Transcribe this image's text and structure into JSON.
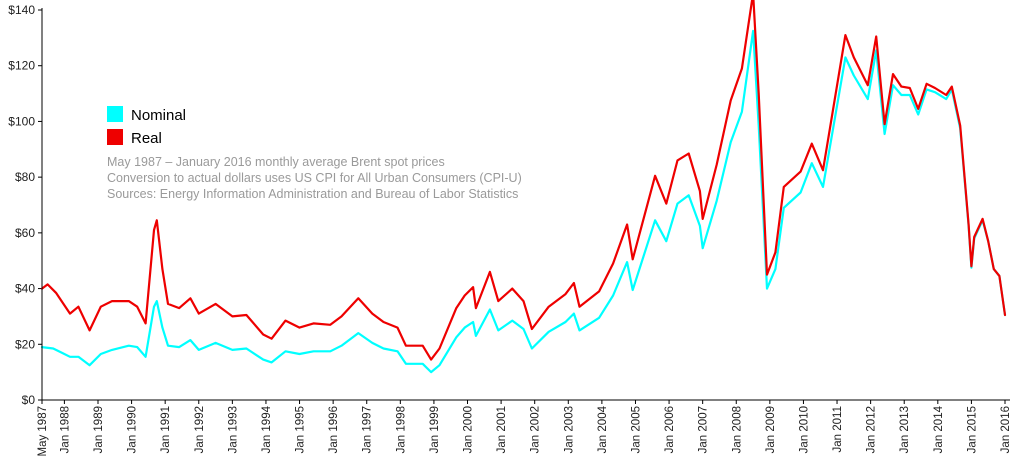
{
  "chart_data": {
    "type": "line",
    "title": "",
    "xlabel": "",
    "ylabel": "",
    "ylim": [
      0,
      140
    ],
    "yticks": [
      "$0",
      "$20",
      "$40",
      "$60",
      "$80",
      "$100",
      "$120",
      "$140"
    ],
    "xticks": [
      "May 1987",
      "Jan 1988",
      "Jan 1989",
      "Jan 1990",
      "Jan 1991",
      "Jan 1992",
      "Jan 1993",
      "Jan 1994",
      "Jan 1995",
      "Jan 1996",
      "Jan 1997",
      "Jan 1998",
      "Jan 1999",
      "Jan 2000",
      "Jan 2001",
      "Jan 2002",
      "Jan 2003",
      "Jan 2004",
      "Jan 2005",
      "Jan 2006",
      "Jan 2007",
      "Jan 2008",
      "Jan 2009",
      "Jan 2010",
      "Jan 2011",
      "Jan 2012",
      "Jan 2013",
      "Jan 2014",
      "Jan 2015",
      "Jan 2016"
    ],
    "grid": false,
    "legend_position": "upper-left",
    "annotations": [
      "May 1987 – January 2016 monthly average Brent spot prices",
      "Conversion to actual dollars uses US CPI for All Urban Consumers (CPI-U)",
      "Sources: Energy Information Administration and Bureau of Labor Statistics"
    ],
    "series": [
      {
        "name": "Nominal",
        "color": "#00ffff",
        "points": [
          [
            "1987-05",
            19.0
          ],
          [
            "1987-09",
            18.5
          ],
          [
            "1987-12",
            17.0
          ],
          [
            "1988-03",
            15.5
          ],
          [
            "1988-06",
            15.5
          ],
          [
            "1988-10",
            12.5
          ],
          [
            "1989-02",
            16.5
          ],
          [
            "1989-06",
            18.0
          ],
          [
            "1989-12",
            19.5
          ],
          [
            "1990-03",
            19.0
          ],
          [
            "1990-06",
            15.5
          ],
          [
            "1990-09",
            33.5
          ],
          [
            "1990-10",
            35.5
          ],
          [
            "1990-12",
            26.0
          ],
          [
            "1991-02",
            19.5
          ],
          [
            "1991-06",
            19.0
          ],
          [
            "1991-10",
            21.5
          ],
          [
            "1992-01",
            18.0
          ],
          [
            "1992-07",
            20.5
          ],
          [
            "1993-01",
            18.0
          ],
          [
            "1993-06",
            18.5
          ],
          [
            "1993-12",
            14.5
          ],
          [
            "1994-03",
            13.5
          ],
          [
            "1994-08",
            17.5
          ],
          [
            "1995-01",
            16.5
          ],
          [
            "1995-06",
            17.5
          ],
          [
            "1995-12",
            17.5
          ],
          [
            "1996-04",
            19.5
          ],
          [
            "1996-10",
            24.0
          ],
          [
            "1997-03",
            20.5
          ],
          [
            "1997-07",
            18.5
          ],
          [
            "1997-12",
            17.5
          ],
          [
            "1998-03",
            13.0
          ],
          [
            "1998-09",
            13.0
          ],
          [
            "1998-12",
            10.0
          ],
          [
            "1999-03",
            12.5
          ],
          [
            "1999-09",
            22.5
          ],
          [
            "1999-12",
            26.0
          ],
          [
            "2000-03",
            28.0
          ],
          [
            "2000-04",
            23.0
          ],
          [
            "2000-09",
            32.5
          ],
          [
            "2000-12",
            25.0
          ],
          [
            "2001-05",
            28.5
          ],
          [
            "2001-09",
            25.5
          ],
          [
            "2001-12",
            18.5
          ],
          [
            "2002-06",
            24.5
          ],
          [
            "2002-12",
            28.0
          ],
          [
            "2003-03",
            31.0
          ],
          [
            "2003-05",
            25.0
          ],
          [
            "2003-12",
            29.5
          ],
          [
            "2004-05",
            37.5
          ],
          [
            "2004-10",
            49.5
          ],
          [
            "2004-12",
            39.5
          ],
          [
            "2005-08",
            64.5
          ],
          [
            "2005-12",
            57.0
          ],
          [
            "2006-04",
            70.5
          ],
          [
            "2006-08",
            73.5
          ],
          [
            "2006-12",
            62.5
          ],
          [
            "2007-01",
            54.5
          ],
          [
            "2007-06",
            71.5
          ],
          [
            "2007-11",
            92.5
          ],
          [
            "2008-03",
            103.5
          ],
          [
            "2008-07",
            132.5
          ],
          [
            "2008-09",
            98.5
          ],
          [
            "2008-12",
            40.0
          ],
          [
            "2009-03",
            47.0
          ],
          [
            "2009-06",
            69.0
          ],
          [
            "2009-12",
            74.5
          ],
          [
            "2010-04",
            85.0
          ],
          [
            "2010-08",
            76.5
          ],
          [
            "2011-04",
            123.0
          ],
          [
            "2011-07",
            116.5
          ],
          [
            "2011-12",
            108.0
          ],
          [
            "2012-03",
            125.5
          ],
          [
            "2012-06",
            95.5
          ],
          [
            "2012-09",
            113.0
          ],
          [
            "2012-12",
            109.5
          ],
          [
            "2013-03",
            109.5
          ],
          [
            "2013-06",
            102.5
          ],
          [
            "2013-09",
            111.5
          ],
          [
            "2013-12",
            110.5
          ],
          [
            "2014-04",
            108.0
          ],
          [
            "2014-06",
            111.5
          ],
          [
            "2014-09",
            97.5
          ],
          [
            "2014-12",
            62.5
          ],
          [
            "2015-01",
            47.5
          ],
          [
            "2015-02",
            58.0
          ],
          [
            "2015-05",
            64.5
          ],
          [
            "2015-07",
            57.0
          ],
          [
            "2015-09",
            47.0
          ],
          [
            "2015-11",
            44.5
          ],
          [
            "2016-01",
            30.5
          ]
        ]
      },
      {
        "name": "Real",
        "color": "#ee0000",
        "points": [
          [
            "1987-05",
            40.0
          ],
          [
            "1987-07",
            41.5
          ],
          [
            "1987-10",
            38.5
          ],
          [
            "1987-12",
            35.5
          ],
          [
            "1988-03",
            31.0
          ],
          [
            "1988-06",
            33.5
          ],
          [
            "1988-10",
            25.0
          ],
          [
            "1989-02",
            33.5
          ],
          [
            "1989-06",
            35.5
          ],
          [
            "1989-12",
            35.5
          ],
          [
            "1990-03",
            33.5
          ],
          [
            "1990-06",
            27.5
          ],
          [
            "1990-09",
            61.0
          ],
          [
            "1990-10",
            64.5
          ],
          [
            "1990-12",
            47.0
          ],
          [
            "1991-02",
            34.5
          ],
          [
            "1991-06",
            33.0
          ],
          [
            "1991-10",
            36.5
          ],
          [
            "1992-01",
            31.0
          ],
          [
            "1992-07",
            34.5
          ],
          [
            "1993-01",
            30.0
          ],
          [
            "1993-06",
            30.5
          ],
          [
            "1993-12",
            23.5
          ],
          [
            "1994-03",
            22.0
          ],
          [
            "1994-08",
            28.5
          ],
          [
            "1995-01",
            26.0
          ],
          [
            "1995-06",
            27.5
          ],
          [
            "1995-12",
            27.0
          ],
          [
            "1996-04",
            30.0
          ],
          [
            "1996-10",
            36.5
          ],
          [
            "1997-03",
            31.0
          ],
          [
            "1997-07",
            28.0
          ],
          [
            "1997-12",
            26.0
          ],
          [
            "1998-03",
            19.5
          ],
          [
            "1998-09",
            19.5
          ],
          [
            "1998-12",
            14.5
          ],
          [
            "1999-03",
            18.5
          ],
          [
            "1999-09",
            33.0
          ],
          [
            "1999-12",
            37.5
          ],
          [
            "2000-03",
            40.5
          ],
          [
            "2000-04",
            33.0
          ],
          [
            "2000-09",
            46.0
          ],
          [
            "2000-12",
            35.5
          ],
          [
            "2001-05",
            40.0
          ],
          [
            "2001-09",
            35.5
          ],
          [
            "2001-12",
            25.5
          ],
          [
            "2002-06",
            33.5
          ],
          [
            "2002-12",
            38.0
          ],
          [
            "2003-03",
            42.0
          ],
          [
            "2003-05",
            33.5
          ],
          [
            "2003-12",
            39.0
          ],
          [
            "2004-05",
            49.0
          ],
          [
            "2004-10",
            63.0
          ],
          [
            "2004-12",
            50.5
          ],
          [
            "2005-08",
            80.5
          ],
          [
            "2005-12",
            70.5
          ],
          [
            "2006-04",
            86.0
          ],
          [
            "2006-08",
            88.5
          ],
          [
            "2006-12",
            75.0
          ],
          [
            "2007-01",
            65.0
          ],
          [
            "2007-06",
            84.5
          ],
          [
            "2007-11",
            107.5
          ],
          [
            "2008-03",
            119.0
          ],
          [
            "2008-07",
            146.0
          ],
          [
            "2008-09",
            110.0
          ],
          [
            "2008-12",
            45.0
          ],
          [
            "2009-03",
            53.0
          ],
          [
            "2009-06",
            76.5
          ],
          [
            "2009-12",
            82.0
          ],
          [
            "2010-04",
            92.0
          ],
          [
            "2010-08",
            82.5
          ],
          [
            "2011-04",
            131.0
          ],
          [
            "2011-07",
            123.0
          ],
          [
            "2011-12",
            113.0
          ],
          [
            "2012-03",
            130.5
          ],
          [
            "2012-06",
            99.0
          ],
          [
            "2012-09",
            117.0
          ],
          [
            "2012-12",
            112.5
          ],
          [
            "2013-03",
            112.0
          ],
          [
            "2013-06",
            104.5
          ],
          [
            "2013-09",
            113.5
          ],
          [
            "2013-12",
            112.0
          ],
          [
            "2014-04",
            109.5
          ],
          [
            "2014-06",
            112.5
          ],
          [
            "2014-09",
            98.5
          ],
          [
            "2014-12",
            63.0
          ],
          [
            "2015-01",
            48.0
          ],
          [
            "2015-02",
            58.5
          ],
          [
            "2015-05",
            65.0
          ],
          [
            "2015-07",
            57.0
          ],
          [
            "2015-09",
            47.0
          ],
          [
            "2015-11",
            44.5
          ],
          [
            "2016-01",
            30.5
          ]
        ]
      }
    ]
  }
}
